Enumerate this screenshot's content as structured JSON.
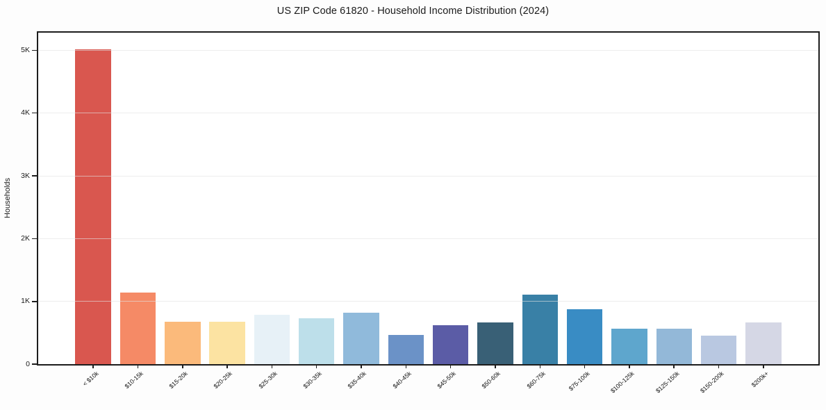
{
  "chart_data": {
    "type": "bar",
    "title": "US ZIP Code 61820 - Household Income Distribution (2024)",
    "xlabel": "",
    "ylabel": "Households",
    "categories": [
      "< $10k",
      "$10-15k",
      "$15-20k",
      "$20-25k",
      "$25-30k",
      "$30-35k",
      "$35-40k",
      "$40-45k",
      "$45-50k",
      "$50-60k",
      "$60-75k",
      "$75-100k",
      "$100-125k",
      "$125-150k",
      "$150-200k",
      "$200k+"
    ],
    "values": [
      5020,
      1140,
      680,
      680,
      790,
      730,
      820,
      460,
      620,
      660,
      1110,
      880,
      560,
      560,
      450,
      660
    ],
    "bar_colors": [
      "#D9574F",
      "#F58A66",
      "#FBBA7B",
      "#FCE3A2",
      "#E7F1F7",
      "#BDDFEA",
      "#90BADB",
      "#6B92C7",
      "#5B5CA6",
      "#396076",
      "#3980A6",
      "#398CC4",
      "#5EA6CD",
      "#93B8D8",
      "#B9C8E1",
      "#D5D7E5"
    ],
    "ylim": [
      0,
      5280
    ],
    "yticks": {
      "values": [
        0,
        1000,
        2000,
        3000,
        4000,
        5000
      ],
      "labels": [
        "0",
        "1K",
        "2K",
        "3K",
        "4K",
        "5K"
      ]
    },
    "grid": "horizontal gridlines at each y tick, drawn above bars",
    "grid_color": "#e8e8e8",
    "spine_color": "#1c1c1c",
    "legend": "none",
    "x_tick_rotation_deg": 42
  }
}
